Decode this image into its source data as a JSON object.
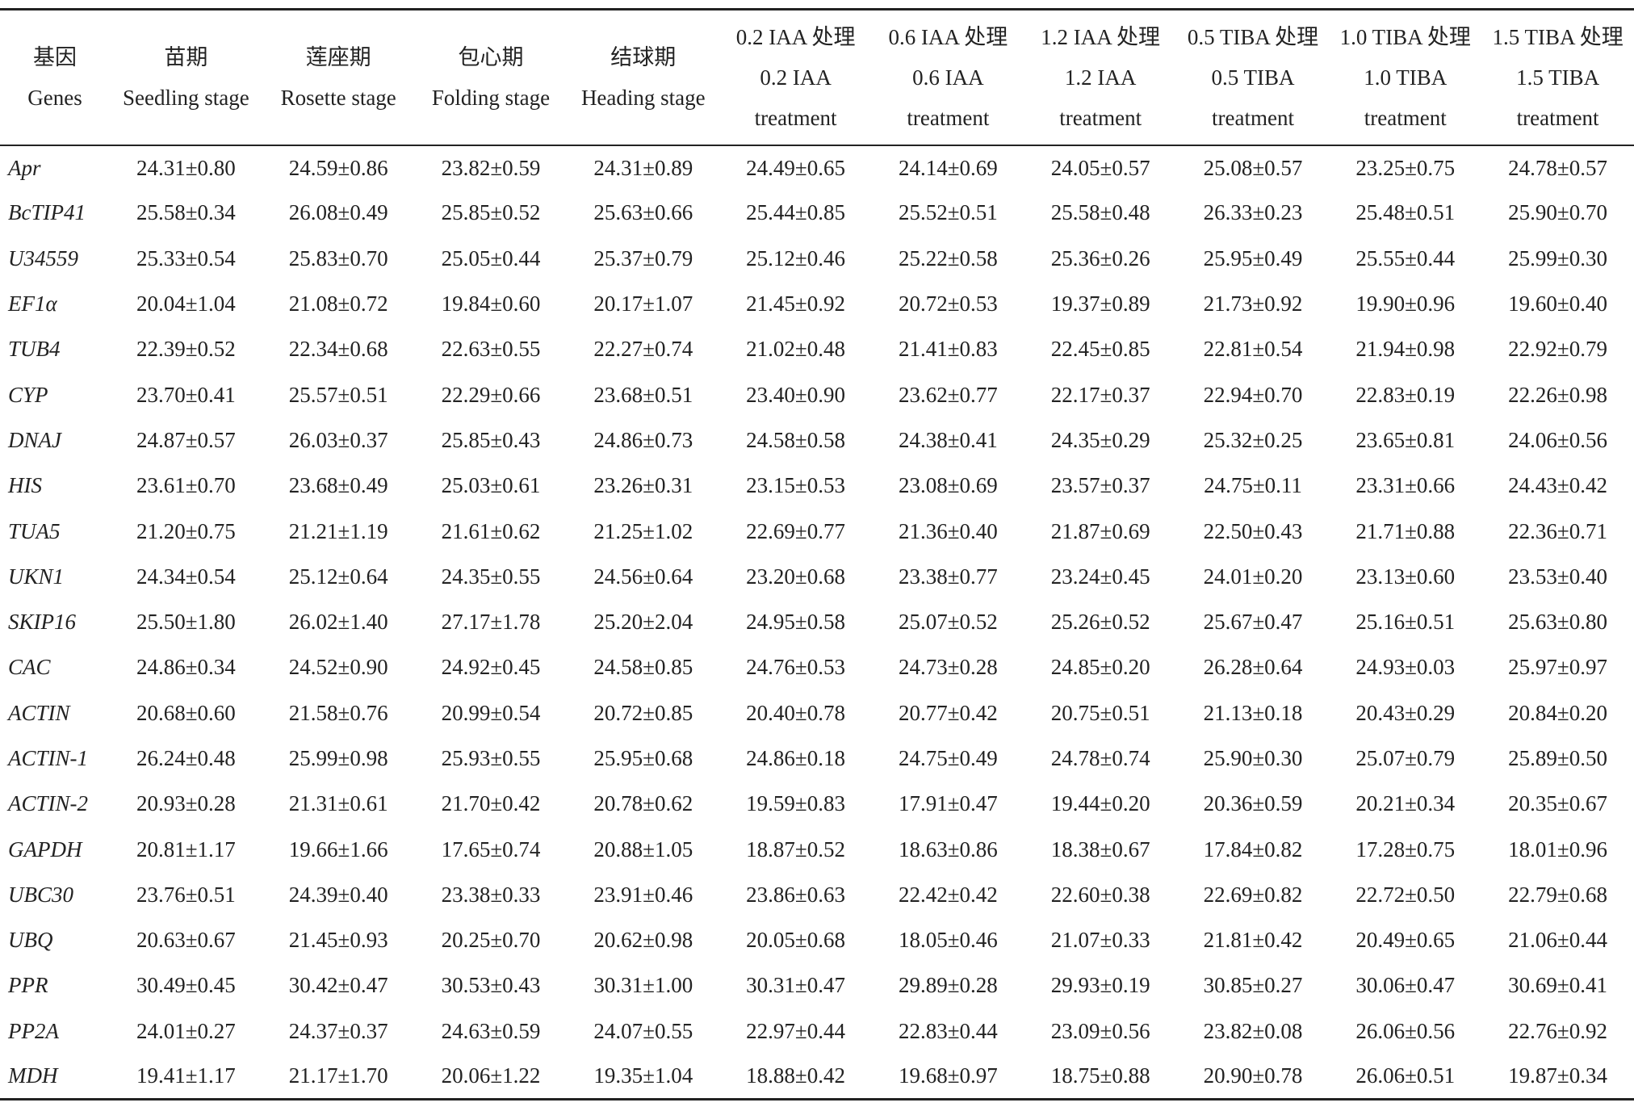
{
  "table": {
    "header": [
      [
        "基因",
        "Genes"
      ],
      [
        "苗期",
        "Seedling stage"
      ],
      [
        "莲座期",
        "Rosette stage"
      ],
      [
        "包心期",
        "Folding stage"
      ],
      [
        "结球期",
        "Heading stage"
      ],
      [
        "0.2 IAA 处理",
        "0.2 IAA",
        "treatment"
      ],
      [
        "0.6 IAA 处理",
        "0.6 IAA",
        "treatment"
      ],
      [
        "1.2 IAA 处理",
        "1.2 IAA",
        "treatment"
      ],
      [
        "0.5 TIBA 处理",
        "0.5 TIBA",
        "treatment"
      ],
      [
        "1.0 TIBA 处理",
        "1.0 TIBA",
        "treatment"
      ],
      [
        "1.5 TIBA 处理",
        "1.5 TIBA",
        "treatment"
      ]
    ],
    "rows": [
      [
        "Apr",
        "24.31±0.80",
        "24.59±0.86",
        "23.82±0.59",
        "24.31±0.89",
        "24.49±0.65",
        "24.14±0.69",
        "24.05±0.57",
        "25.08±0.57",
        "23.25±0.75",
        "24.78±0.57"
      ],
      [
        "BcTIP41",
        "25.58±0.34",
        "26.08±0.49",
        "25.85±0.52",
        "25.63±0.66",
        "25.44±0.85",
        "25.52±0.51",
        "25.58±0.48",
        "26.33±0.23",
        "25.48±0.51",
        "25.90±0.70"
      ],
      [
        "U34559",
        "25.33±0.54",
        "25.83±0.70",
        "25.05±0.44",
        "25.37±0.79",
        "25.12±0.46",
        "25.22±0.58",
        "25.36±0.26",
        "25.95±0.49",
        "25.55±0.44",
        "25.99±0.30"
      ],
      [
        "EF1α",
        "20.04±1.04",
        "21.08±0.72",
        "19.84±0.60",
        "20.17±1.07",
        "21.45±0.92",
        "20.72±0.53",
        "19.37±0.89",
        "21.73±0.92",
        "19.90±0.96",
        "19.60±0.40"
      ],
      [
        "TUB4",
        "22.39±0.52",
        "22.34±0.68",
        "22.63±0.55",
        "22.27±0.74",
        "21.02±0.48",
        "21.41±0.83",
        "22.45±0.85",
        "22.81±0.54",
        "21.94±0.98",
        "22.92±0.79"
      ],
      [
        "CYP",
        "23.70±0.41",
        "25.57±0.51",
        "22.29±0.66",
        "23.68±0.51",
        "23.40±0.90",
        "23.62±0.77",
        "22.17±0.37",
        "22.94±0.70",
        "22.83±0.19",
        "22.26±0.98"
      ],
      [
        "DNAJ",
        "24.87±0.57",
        "26.03±0.37",
        "25.85±0.43",
        "24.86±0.73",
        "24.58±0.58",
        "24.38±0.41",
        "24.35±0.29",
        "25.32±0.25",
        "23.65±0.81",
        "24.06±0.56"
      ],
      [
        "HIS",
        "23.61±0.70",
        "23.68±0.49",
        "25.03±0.61",
        "23.26±0.31",
        "23.15±0.53",
        "23.08±0.69",
        "23.57±0.37",
        "24.75±0.11",
        "23.31±0.66",
        "24.43±0.42"
      ],
      [
        "TUA5",
        "21.20±0.75",
        "21.21±1.19",
        "21.61±0.62",
        "21.25±1.02",
        "22.69±0.77",
        "21.36±0.40",
        "21.87±0.69",
        "22.50±0.43",
        "21.71±0.88",
        "22.36±0.71"
      ],
      [
        "UKN1",
        "24.34±0.54",
        "25.12±0.64",
        "24.35±0.55",
        "24.56±0.64",
        "23.20±0.68",
        "23.38±0.77",
        "23.24±0.45",
        "24.01±0.20",
        "23.13±0.60",
        "23.53±0.40"
      ],
      [
        "SKIP16",
        "25.50±1.80",
        "26.02±1.40",
        "27.17±1.78",
        "25.20±2.04",
        "24.95±0.58",
        "25.07±0.52",
        "25.26±0.52",
        "25.67±0.47",
        "25.16±0.51",
        "25.63±0.80"
      ],
      [
        "CAC",
        "24.86±0.34",
        "24.52±0.90",
        "24.92±0.45",
        "24.58±0.85",
        "24.76±0.53",
        "24.73±0.28",
        "24.85±0.20",
        "26.28±0.64",
        "24.93±0.03",
        "25.97±0.97"
      ],
      [
        "ACTIN",
        "20.68±0.60",
        "21.58±0.76",
        "20.99±0.54",
        "20.72±0.85",
        "20.40±0.78",
        "20.77±0.42",
        "20.75±0.51",
        "21.13±0.18",
        "20.43±0.29",
        "20.84±0.20"
      ],
      [
        "ACTIN-1",
        "26.24±0.48",
        "25.99±0.98",
        "25.93±0.55",
        "25.95±0.68",
        "24.86±0.18",
        "24.75±0.49",
        "24.78±0.74",
        "25.90±0.30",
        "25.07±0.79",
        "25.89±0.50"
      ],
      [
        "ACTIN-2",
        "20.93±0.28",
        "21.31±0.61",
        "21.70±0.42",
        "20.78±0.62",
        "19.59±0.83",
        "17.91±0.47",
        "19.44±0.20",
        "20.36±0.59",
        "20.21±0.34",
        "20.35±0.67"
      ],
      [
        "GAPDH",
        "20.81±1.17",
        "19.66±1.66",
        "17.65±0.74",
        "20.88±1.05",
        "18.87±0.52",
        "18.63±0.86",
        "18.38±0.67",
        "17.84±0.82",
        "17.28±0.75",
        "18.01±0.96"
      ],
      [
        "UBC30",
        "23.76±0.51",
        "24.39±0.40",
        "23.38±0.33",
        "23.91±0.46",
        "23.86±0.63",
        "22.42±0.42",
        "22.60±0.38",
        "22.69±0.82",
        "22.72±0.50",
        "22.79±0.68"
      ],
      [
        "UBQ",
        "20.63±0.67",
        "21.45±0.93",
        "20.25±0.70",
        "20.62±0.98",
        "20.05±0.68",
        "18.05±0.46",
        "21.07±0.33",
        "21.81±0.42",
        "20.49±0.65",
        "21.06±0.44"
      ],
      [
        "PPR",
        "30.49±0.45",
        "30.42±0.47",
        "30.53±0.43",
        "30.31±1.00",
        "30.31±0.47",
        "29.89±0.28",
        "29.93±0.19",
        "30.85±0.27",
        "30.06±0.47",
        "30.69±0.41"
      ],
      [
        "PP2A",
        "24.01±0.27",
        "24.37±0.37",
        "24.63±0.59",
        "24.07±0.55",
        "22.97±0.44",
        "22.83±0.44",
        "23.09±0.56",
        "23.82±0.08",
        "26.06±0.56",
        "22.76±0.92"
      ],
      [
        "MDH",
        "19.41±1.17",
        "21.17±1.70",
        "20.06±1.22",
        "19.35±1.04",
        "18.88±0.42",
        "19.68±0.97",
        "18.75±0.88",
        "20.90±0.78",
        "26.06±0.51",
        "19.87±0.34"
      ]
    ]
  }
}
